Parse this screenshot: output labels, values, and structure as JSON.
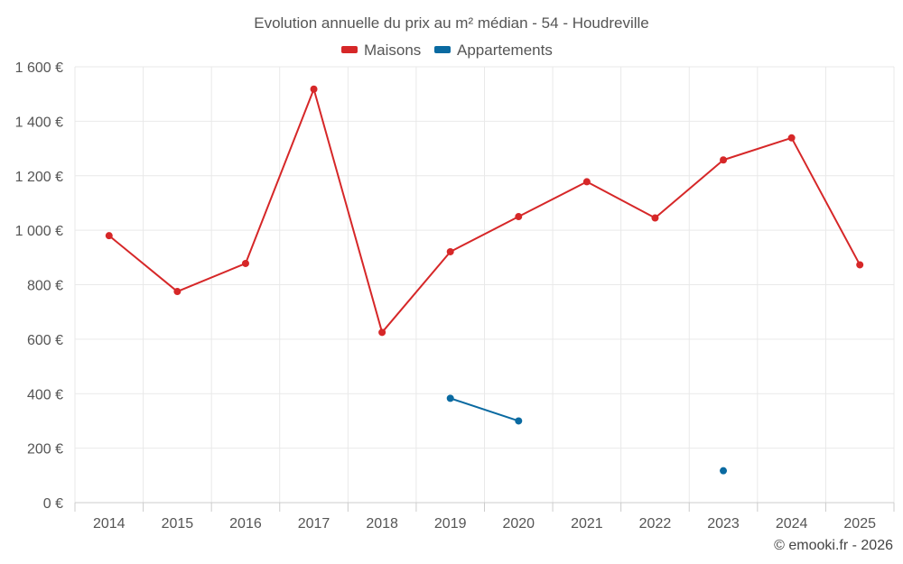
{
  "chart_data": {
    "type": "line",
    "title": "Evolution annuelle du prix au m² médian - 54 - Houdreville",
    "categories": [
      "2014",
      "2015",
      "2016",
      "2017",
      "2018",
      "2019",
      "2020",
      "2021",
      "2022",
      "2023",
      "2024",
      "2025"
    ],
    "series": [
      {
        "name": "Maisons",
        "color": "#d62728",
        "values": [
          980,
          775,
          878,
          1518,
          625,
          921,
          1050,
          1178,
          1045,
          1258,
          1339,
          873
        ]
      },
      {
        "name": "Appartements",
        "color": "#0a6aa1",
        "values": [
          null,
          null,
          null,
          null,
          null,
          383,
          300,
          null,
          null,
          117,
          null,
          null
        ]
      }
    ],
    "ylim": [
      0,
      1600
    ],
    "yticks": [
      0,
      200,
      400,
      600,
      800,
      1000,
      1200,
      1400,
      1600
    ],
    "ytick_labels": [
      "0 €",
      "200 €",
      "400 €",
      "600 €",
      "800 €",
      "1 000 €",
      "1 200 €",
      "1 400 €",
      "1 600 €"
    ],
    "xlabel": "",
    "ylabel": "",
    "grid": true,
    "legend_position": "top-center"
  },
  "credit": "© emooki.fr - 2026"
}
